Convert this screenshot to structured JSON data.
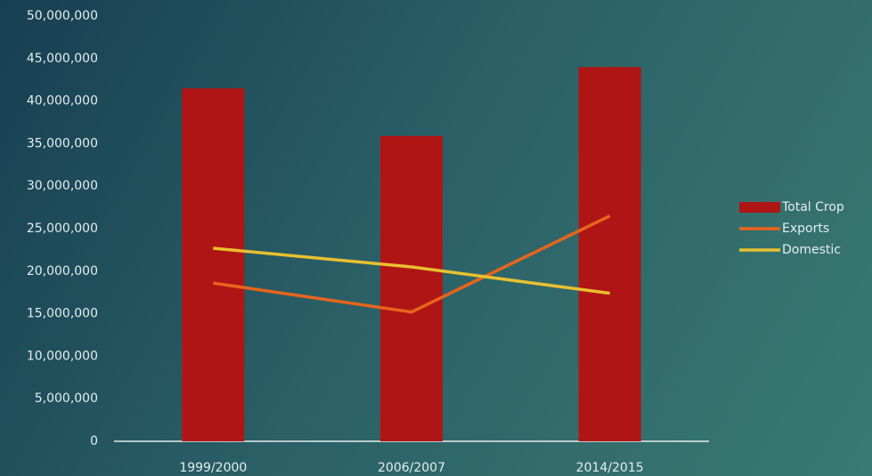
{
  "chart_data": {
    "type": "bar",
    "categories": [
      "1999/2000",
      "2006/2007",
      "2014/2015"
    ],
    "series": [
      {
        "name": "Total Crop",
        "type": "bar",
        "color": "#b01515",
        "values": [
          41500000,
          35900000,
          44000000
        ]
      },
      {
        "name": "Exports",
        "type": "line",
        "color": "#e8641c",
        "values": [
          18600000,
          15200000,
          26500000
        ]
      },
      {
        "name": "Domestic",
        "type": "line",
        "color": "#e8c030",
        "values": [
          22700000,
          20500000,
          17400000
        ]
      }
    ],
    "ylim": [
      0,
      50000000
    ],
    "yticks": [
      0,
      {
        "value": 5000000,
        "label": "5,000,000"
      },
      {
        "value": 10000000,
        "label": "10,000,000"
      },
      {
        "value": 15000000,
        "label": "15,000,000"
      },
      {
        "value": 20000000,
        "label": "20,000,000"
      },
      {
        "value": 25000000,
        "label": "25,000,000"
      },
      {
        "value": 30000000,
        "label": "30,000,000"
      },
      {
        "value": 35000000,
        "label": "35,000,000"
      },
      {
        "value": 40000000,
        "label": "40,000,000"
      },
      {
        "value": 45000000,
        "label": "45,000,000"
      },
      {
        "value": 50000000,
        "label": "50,000,000"
      }
    ],
    "legend": "right"
  }
}
